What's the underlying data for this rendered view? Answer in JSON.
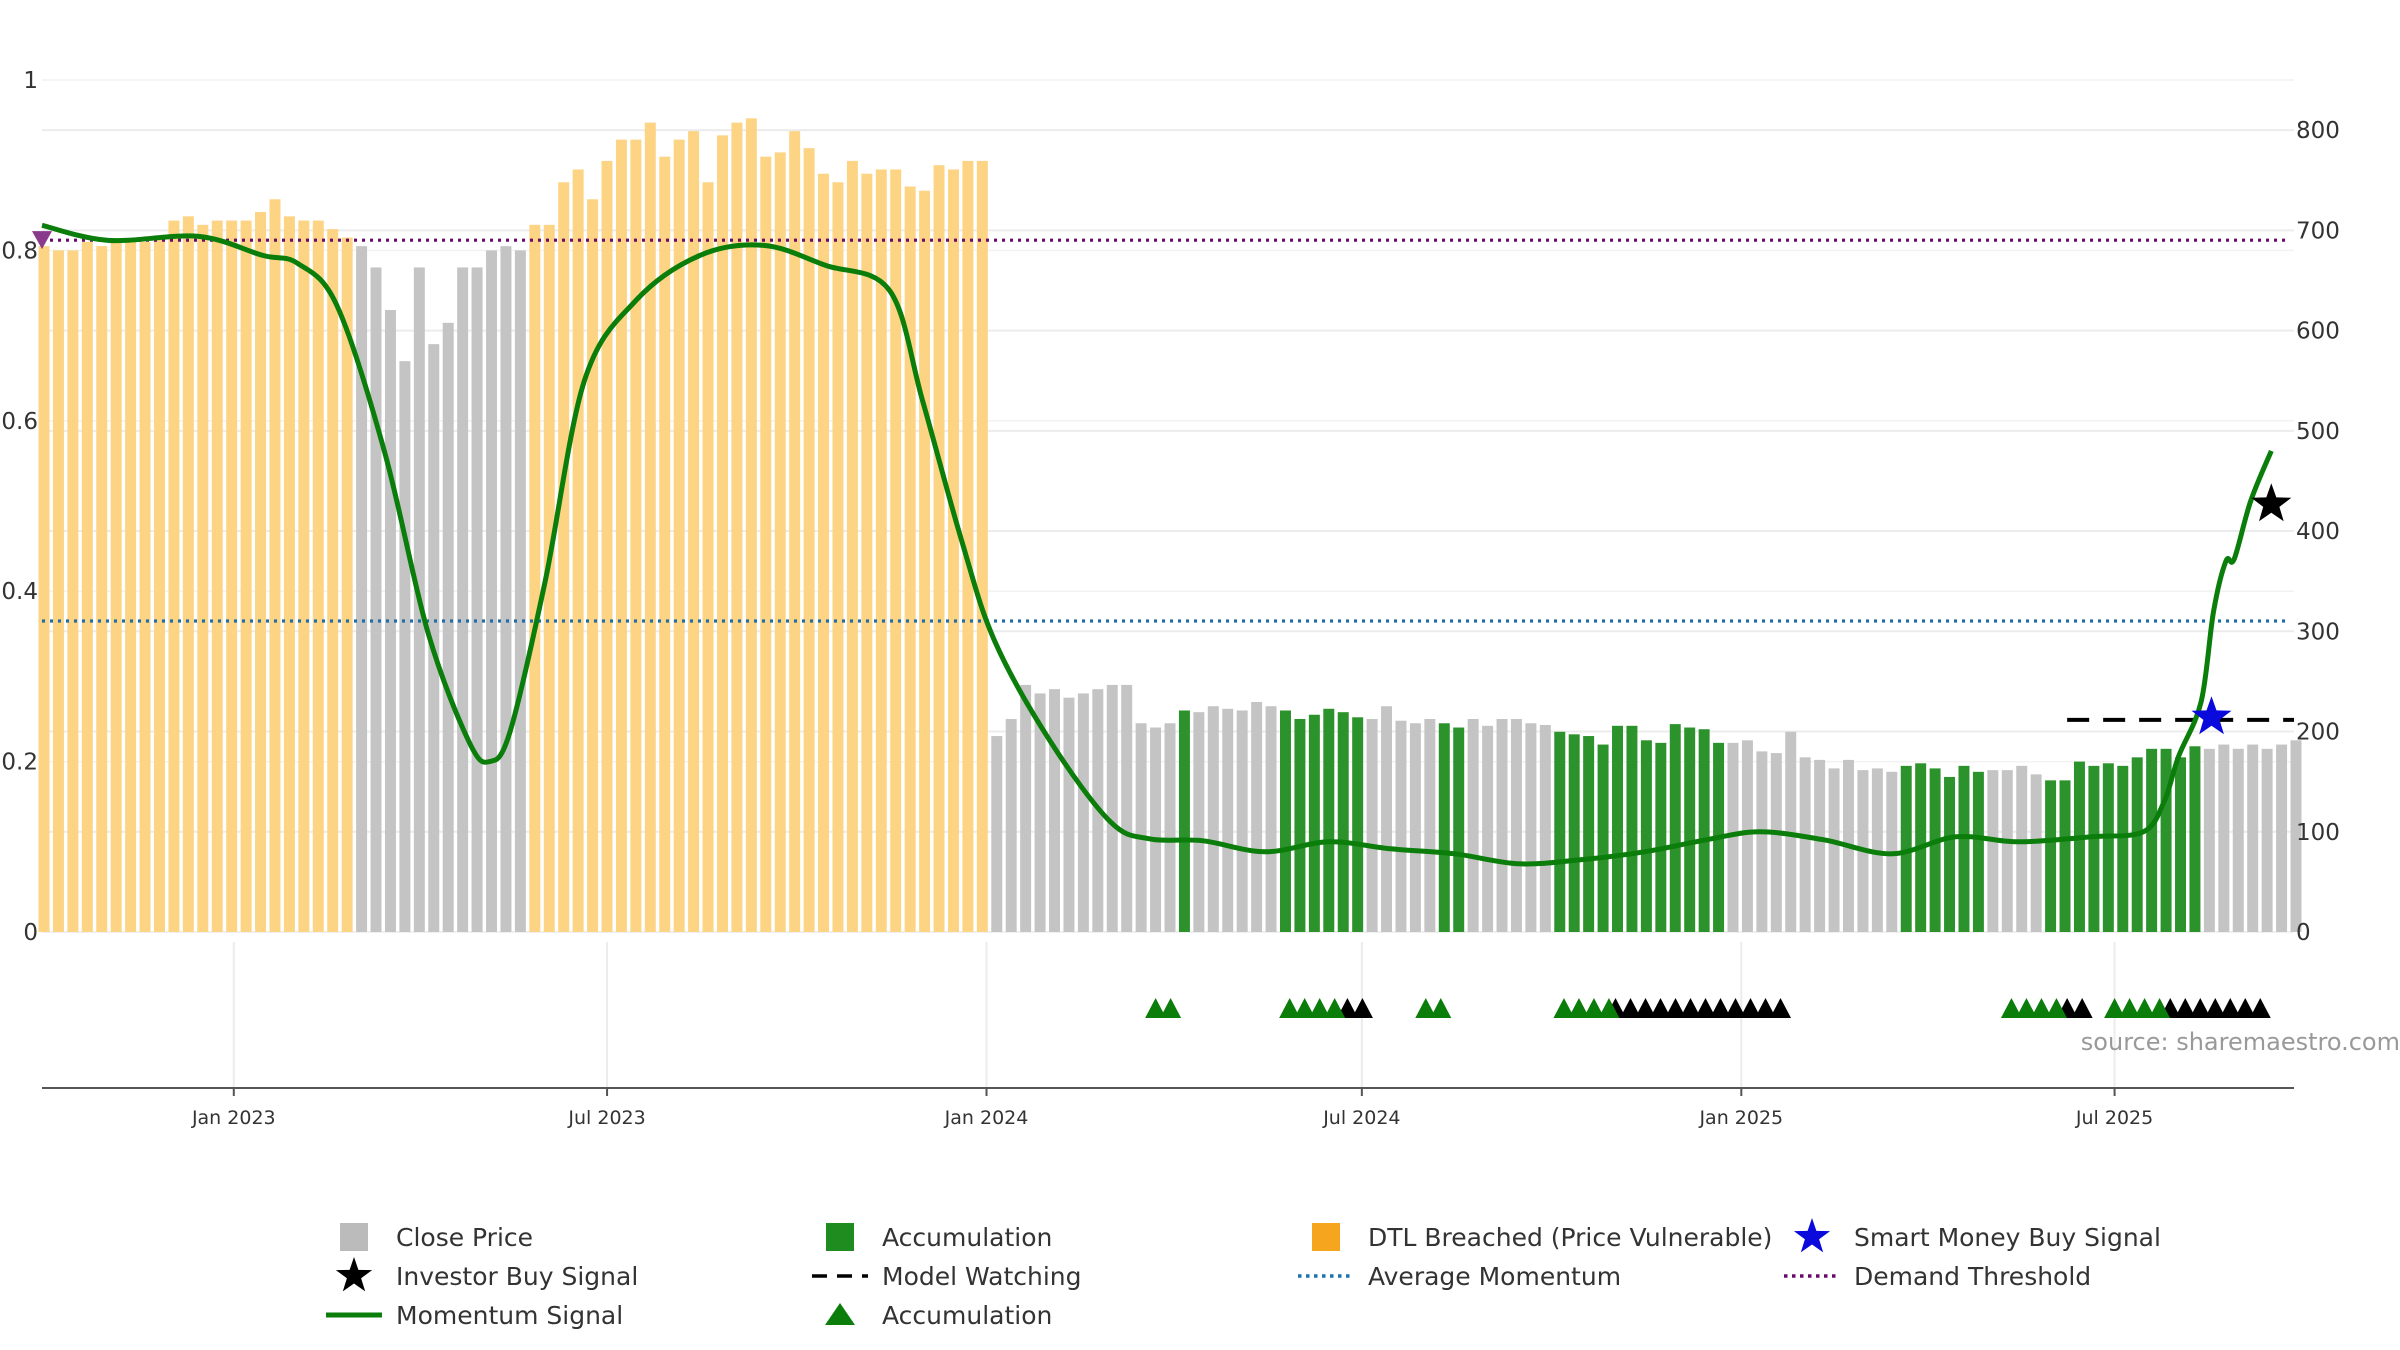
{
  "chart_data": {
    "type": "bar",
    "left_axis": {
      "range": [
        0,
        1
      ],
      "ticks": [
        0,
        0.2,
        0.4,
        0.6,
        0.8,
        1
      ],
      "tick_labels": [
        "0",
        "0.2",
        "0.4",
        "0.6",
        "0.8",
        "1"
      ]
    },
    "right_axis": {
      "range": [
        0,
        850
      ],
      "ticks": [
        0,
        100,
        200,
        300,
        400,
        500,
        600,
        700,
        800
      ],
      "tick_labels": [
        "0",
        "100",
        "200",
        "300",
        "400",
        "500",
        "600",
        "700",
        "800"
      ]
    },
    "x_axis": {
      "range": [
        "2022-09-30",
        "2025-09-26"
      ],
      "ticks": [
        "2023-01-01",
        "2023-07-01",
        "2024-01-01",
        "2024-07-01",
        "2025-01-01",
        "2025-07-01"
      ],
      "tick_labels": [
        "Jan 2023",
        "Jul 2023",
        "Jan 2024",
        "Jul 2024",
        "Jan 2025",
        "Jul 2025"
      ]
    },
    "grid": true,
    "series_colors": {
      "close": "#c4c4c4",
      "accumulation": "#2c922c",
      "dtl": "#fdd384",
      "momentum": "#0a7d0a",
      "avg_momentum": "#1f6fa8",
      "demand": "#6a0a6a",
      "model_watch": "#000000",
      "smart_money": "#0a0adc",
      "investor": "#000000"
    },
    "bars_weekly": {
      "start_date": "2022-09-30",
      "interval_days": 7,
      "values": [
        0.805,
        0.8,
        0.8,
        0.81,
        0.805,
        0.81,
        0.81,
        0.81,
        0.815,
        0.835,
        0.84,
        0.83,
        0.835,
        0.835,
        0.835,
        0.845,
        0.86,
        0.84,
        0.835,
        0.835,
        0.825,
        0.815,
        0.805,
        0.78,
        0.73,
        0.67,
        0.78,
        0.69,
        0.715,
        0.78,
        0.78,
        0.8,
        0.805,
        0.8,
        0.83,
        0.83,
        0.88,
        0.895,
        0.86,
        0.905,
        0.93,
        0.93,
        0.95,
        0.91,
        0.93,
        0.94,
        0.88,
        0.935,
        0.95,
        0.955,
        0.91,
        0.915,
        0.94,
        0.92,
        0.89,
        0.88,
        0.905,
        0.89,
        0.895,
        0.895,
        0.875,
        0.87,
        0.9,
        0.895,
        0.905,
        0.905,
        0.23,
        0.25,
        0.29,
        0.28,
        0.285,
        0.275,
        0.28,
        0.285,
        0.29,
        0.29,
        0.245,
        0.24,
        0.245,
        0.26,
        0.258,
        0.265,
        0.262,
        0.26,
        0.27,
        0.265,
        0.26,
        0.25,
        0.255,
        0.262,
        0.258,
        0.252,
        0.25,
        0.265,
        0.248,
        0.245,
        0.25,
        0.245,
        0.24,
        0.25,
        0.242,
        0.25,
        0.25,
        0.245,
        0.243,
        0.235,
        0.232,
        0.23,
        0.22,
        0.242,
        0.242,
        0.225,
        0.222,
        0.244,
        0.24,
        0.238,
        0.222,
        0.222,
        0.225,
        0.212,
        0.21,
        0.235,
        0.205,
        0.202,
        0.192,
        0.202,
        0.19,
        0.192,
        0.188,
        0.195,
        0.198,
        0.192,
        0.182,
        0.195,
        0.188,
        0.19,
        0.19,
        0.195,
        0.185,
        0.178,
        0.178,
        0.2,
        0.195,
        0.198,
        0.195,
        0.205,
        0.215,
        0.215,
        0.205,
        0.218,
        0.215,
        0.22,
        0.215,
        0.22,
        0.215,
        0.22,
        0.225
      ],
      "accumulation_index_ranges": [
        [
          79,
          79
        ],
        [
          86,
          91
        ],
        [
          97,
          98
        ],
        [
          105,
          116
        ],
        [
          129,
          134
        ],
        [
          139,
          149
        ]
      ],
      "dtl_index_ranges": [
        [
          0,
          21
        ],
        [
          34,
          65
        ]
      ]
    },
    "momentum": {
      "unit_axis": "right",
      "points": [
        [
          "2022-09-30",
          705
        ],
        [
          "2022-11-01",
          690
        ],
        [
          "2022-12-15",
          694
        ],
        [
          "2023-01-15",
          675
        ],
        [
          "2023-02-01",
          667
        ],
        [
          "2023-02-20",
          625
        ],
        [
          "2023-03-15",
          480
        ],
        [
          "2023-04-05",
          300
        ],
        [
          "2023-04-25",
          190
        ],
        [
          "2023-05-05",
          170
        ],
        [
          "2023-05-15",
          200
        ],
        [
          "2023-06-01",
          350
        ],
        [
          "2023-06-20",
          550
        ],
        [
          "2023-07-15",
          630
        ],
        [
          "2023-08-15",
          675
        ],
        [
          "2023-09-15",
          685
        ],
        [
          "2023-10-15",
          665
        ],
        [
          "2023-11-15",
          640
        ],
        [
          "2023-12-01",
          530
        ],
        [
          "2023-12-20",
          390
        ],
        [
          "2024-01-05",
          290
        ],
        [
          "2024-02-01",
          190
        ],
        [
          "2024-03-01",
          110
        ],
        [
          "2024-03-20",
          93
        ],
        [
          "2024-04-15",
          91
        ],
        [
          "2024-05-15",
          80
        ],
        [
          "2024-06-15",
          90
        ],
        [
          "2024-07-15",
          83
        ],
        [
          "2024-08-15",
          78
        ],
        [
          "2024-09-15",
          68
        ],
        [
          "2024-10-15",
          72
        ],
        [
          "2024-11-15",
          80
        ],
        [
          "2024-12-15",
          92
        ],
        [
          "2025-01-10",
          100
        ],
        [
          "2025-02-10",
          92
        ],
        [
          "2025-03-15",
          78
        ],
        [
          "2025-04-15",
          95
        ],
        [
          "2025-05-15",
          90
        ],
        [
          "2025-06-20",
          95
        ],
        [
          "2025-07-15",
          100
        ],
        [
          "2025-07-25",
          130
        ],
        [
          "2025-08-01",
          175
        ],
        [
          "2025-08-12",
          230
        ],
        [
          "2025-08-18",
          320
        ],
        [
          "2025-08-24",
          370
        ],
        [
          "2025-08-28",
          372
        ],
        [
          "2025-09-05",
          430
        ],
        [
          "2025-09-15",
          480
        ]
      ]
    },
    "average_momentum": 0.365,
    "demand_threshold": 0.812,
    "model_watching": {
      "value": 0.249,
      "start": "2025-06-08",
      "end": "2025-09-26"
    },
    "smart_money_buy": {
      "date": "2025-08-17",
      "value": 0.252
    },
    "investor_buy": {
      "date": "2025-09-15",
      "value": 0.502
    },
    "start_marker": {
      "date": "2022-09-30",
      "value": 0.812
    },
    "accumulation_markers": {
      "green": [
        [
          "2024-03-23",
          2
        ],
        [
          "2024-05-27",
          4
        ],
        [
          "2024-08-01",
          2
        ],
        [
          "2024-10-07",
          4
        ],
        [
          "2025-05-12",
          4
        ],
        [
          "2025-07-01",
          4
        ]
      ],
      "black": [
        [
          "2024-06-24",
          2
        ],
        [
          "2024-11-01",
          12
        ],
        [
          "2025-06-08",
          2
        ],
        [
          "2025-07-28",
          7
        ]
      ]
    },
    "source_text": "source: sharemaestro.com",
    "legend": [
      {
        "label": "Close Price",
        "symbol": "square",
        "color": "#bbbbbb"
      },
      {
        "label": "Accumulation",
        "symbol": "square",
        "color": "#1e8c1e"
      },
      {
        "label": "DTL Breached (Price Vulnerable)",
        "symbol": "square",
        "color": "#f5a61e"
      },
      {
        "label": "Smart Money Buy Signal",
        "symbol": "star",
        "color": "#0a0adc"
      },
      {
        "label": "Investor Buy Signal",
        "symbol": "star",
        "color": "#000000"
      },
      {
        "label": "Model Watching",
        "symbol": "dash",
        "color": "#000000"
      },
      {
        "label": "Average Momentum",
        "symbol": "dot",
        "color": "#1f6fa8"
      },
      {
        "label": "Demand Threshold",
        "symbol": "dot",
        "color": "#6a0a6a"
      },
      {
        "label": "Momentum Signal",
        "symbol": "line",
        "color": "#0a7d0a"
      },
      {
        "label": "Accumulation",
        "symbol": "triangle",
        "color": "#0a7d0a"
      }
    ]
  }
}
